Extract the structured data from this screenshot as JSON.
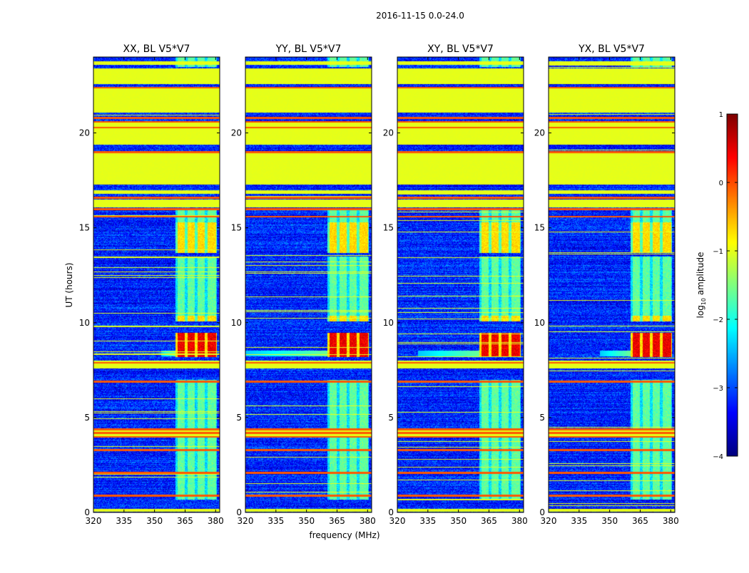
{
  "chart_data": {
    "type": "heatmap",
    "suptitle": "2016-11-15 0.0-24.0",
    "xlabel": "frequency (MHz)",
    "ylabel": "UT (hours)",
    "xlim": [
      320,
      382
    ],
    "ylim": [
      0,
      24
    ],
    "xticks": [
      320,
      335,
      350,
      365,
      380
    ],
    "yticks": [
      0,
      5,
      10,
      15,
      20
    ],
    "panels": [
      {
        "title": "XX, BL V5*V7",
        "rfi_tail_start": 353
      },
      {
        "title": "YY, BL V5*V7",
        "rfi_tail_start": 320
      },
      {
        "title": "XY, BL V5*V7",
        "rfi_tail_start": 330
      },
      {
        "title": "YX, BL V5*V7",
        "rfi_tail_start": 345
      }
    ],
    "colorbar": {
      "label_base": "log",
      "label_sub": "10",
      "label_rest": " amplitude",
      "range": [
        -4,
        1
      ],
      "ticks": [
        1,
        0,
        -1,
        -2,
        -3,
        -4
      ],
      "tick_labels": [
        "1",
        "0",
        "−1",
        "−2",
        "−3",
        "−4"
      ],
      "colormap": "jet"
    },
    "features": {
      "background_level": -3.2,
      "flagged_level": -1.0,
      "flagged_blocks_hours": [
        [
          16.1,
          16.5
        ],
        [
          16.8,
          17.0
        ],
        [
          17.3,
          19.0
        ],
        [
          19.4,
          20.6
        ],
        [
          21.1,
          22.4
        ],
        [
          22.6,
          23.4
        ],
        [
          23.6,
          23.8
        ],
        [
          7.6,
          8.0
        ],
        [
          4.0,
          4.4
        ],
        [
          0.05,
          0.2
        ]
      ],
      "orange_lines_hours": [
        0.9,
        2.1,
        3.3,
        4.0,
        4.2,
        4.4,
        6.9,
        7.9,
        15.6,
        16.0,
        16.6,
        19.0,
        20.3,
        20.6,
        20.8,
        22.4
      ],
      "rfi_band_columns_mhz": [
        [
          361,
          364.5
        ],
        [
          366,
          369.5
        ],
        [
          371,
          374.5
        ],
        [
          376,
          380
        ]
      ],
      "strong_rfi_hours": [
        8.2,
        9.5
      ],
      "moderate_rfi_hours": [
        [
          13.7,
          15.3
        ],
        [
          10.1,
          10.4
        ]
      ],
      "weak_rfi_hours": [
        [
          0.7,
          7.0
        ],
        [
          10.4,
          13.5
        ],
        [
          15.3,
          16.0
        ],
        [
          23.5,
          24.0
        ]
      ]
    }
  }
}
